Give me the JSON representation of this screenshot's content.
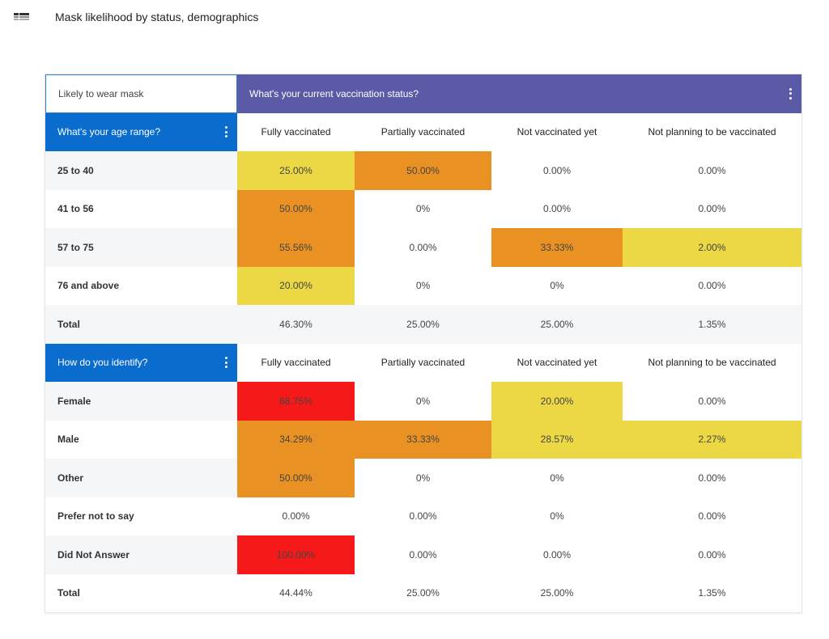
{
  "header": {
    "title": "Mask likelihood by status, demographics",
    "icon": "table-icon"
  },
  "colors": {
    "yellow": "#EBD844",
    "orange": "#E99223",
    "red": "#F5191A",
    "column_header": "#5B5AA6",
    "row_header": "#0A6CCC"
  },
  "table": {
    "corner_label": "Likely to wear mask",
    "column_question": "What's your current vaccination status?",
    "sections": [
      {
        "question": "What's your age range?",
        "columns": [
          "Fully vaccinated",
          "Partially vaccinated",
          "Not vaccinated yet",
          "Not planning to be vaccinated"
        ],
        "rows": [
          {
            "label": "25 to 40",
            "values": [
              "25.00%",
              "50.00%",
              "0.00%",
              "0.00%"
            ],
            "heat": [
              "yellow",
              "orange",
              null,
              null
            ]
          },
          {
            "label": "41 to 56",
            "values": [
              "50.00%",
              "0%",
              "0.00%",
              "0.00%"
            ],
            "heat": [
              "orange",
              null,
              null,
              null
            ]
          },
          {
            "label": "57 to 75",
            "values": [
              "55.56%",
              "0.00%",
              "33.33%",
              "2.00%"
            ],
            "heat": [
              "orange",
              null,
              "orange",
              "yellow"
            ]
          },
          {
            "label": "76 and above",
            "values": [
              "20.00%",
              "0%",
              "0%",
              "0.00%"
            ],
            "heat": [
              "yellow",
              null,
              null,
              null
            ]
          },
          {
            "label": "Total",
            "values": [
              "46.30%",
              "25.00%",
              "25.00%",
              "1.35%"
            ],
            "heat": [
              null,
              null,
              null,
              null
            ]
          }
        ]
      },
      {
        "question": "How do you identify?",
        "columns": [
          "Fully vaccinated",
          "Partially vaccinated",
          "Not vaccinated yet",
          "Not planning to be vaccinated"
        ],
        "rows": [
          {
            "label": "Female",
            "values": [
              "68.75%",
              "0%",
              "20.00%",
              "0.00%"
            ],
            "heat": [
              "red",
              null,
              "yellow",
              null
            ]
          },
          {
            "label": "Male",
            "values": [
              "34.29%",
              "33.33%",
              "28.57%",
              "2.27%"
            ],
            "heat": [
              "orange",
              "orange",
              "yellow",
              "yellow"
            ]
          },
          {
            "label": "Other",
            "values": [
              "50.00%",
              "0%",
              "0%",
              "0.00%"
            ],
            "heat": [
              "orange",
              null,
              null,
              null
            ]
          },
          {
            "label": "Prefer not to say",
            "values": [
              "0.00%",
              "0.00%",
              "0%",
              "0.00%"
            ],
            "heat": [
              null,
              null,
              null,
              null
            ]
          },
          {
            "label": "Did Not Answer",
            "values": [
              "100.00%",
              "0.00%",
              "0.00%",
              "0.00%"
            ],
            "heat": [
              "red",
              null,
              null,
              null
            ]
          },
          {
            "label": "Total",
            "values": [
              "44.44%",
              "25.00%",
              "25.00%",
              "1.35%"
            ],
            "heat": [
              null,
              null,
              null,
              null
            ]
          }
        ]
      }
    ]
  }
}
